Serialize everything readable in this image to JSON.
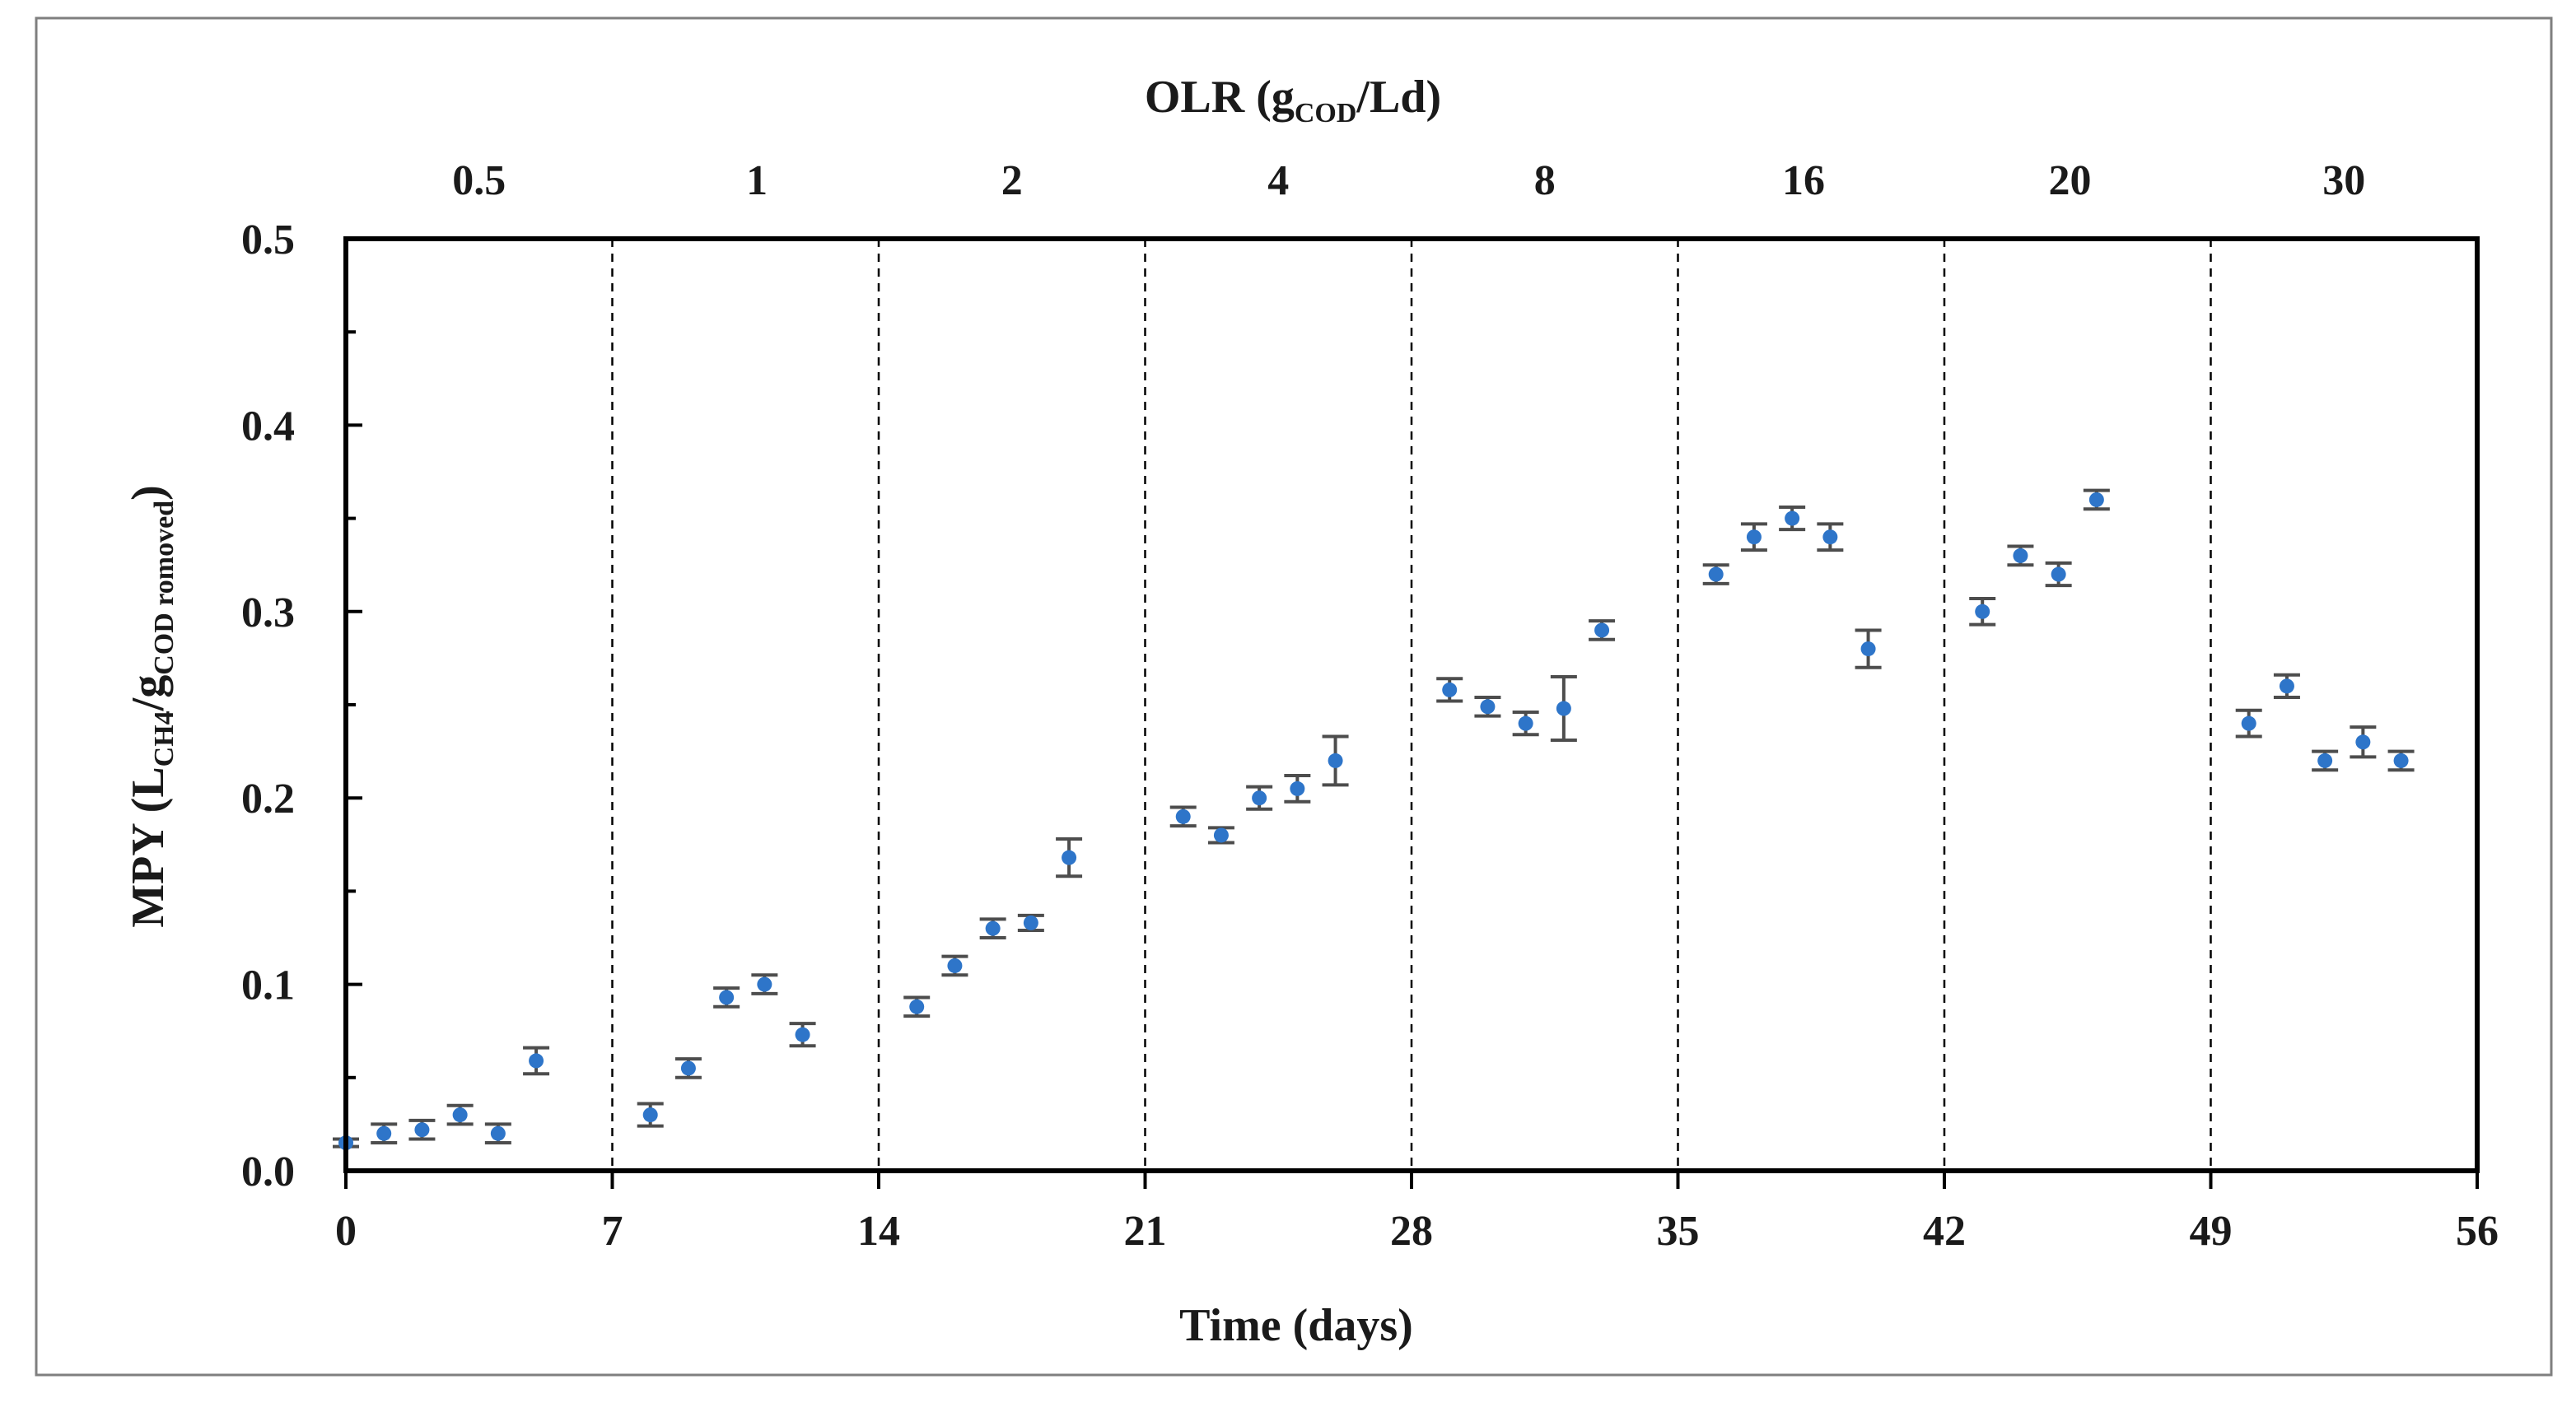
{
  "colors": {
    "marker": "#2e75c9",
    "error_bar": "#4d4d4d",
    "axis": "#000000",
    "frame": "#7f7f7f"
  },
  "chart_data": {
    "type": "scatter",
    "title": "",
    "xlabel": "Time (days)",
    "ylabel_main": "MPY (L",
    "ylabel_sub1": "CH4",
    "ylabel_mid": "/g",
    "ylabel_sub2": "COD romoved",
    "ylabel_end": ")",
    "xlim": [
      0,
      56
    ],
    "ylim": [
      0,
      0.5
    ],
    "x_ticks": [
      0,
      7,
      14,
      21,
      28,
      35,
      42,
      49,
      56
    ],
    "x_tick_labels": [
      "0",
      "7",
      "14",
      "21",
      "28",
      "35",
      "42",
      "49",
      "56"
    ],
    "y_ticks": [
      0,
      0.1,
      0.2,
      0.3,
      0.4,
      0.5
    ],
    "y_tick_labels": [
      "0.0",
      "0.1",
      "0.2",
      "0.3",
      "0.4",
      "0.5"
    ],
    "period_boundaries": [
      7,
      14,
      21,
      28,
      35,
      42,
      49
    ],
    "top_axis": {
      "title_main": "OLR (g",
      "title_sub": "COD",
      "title_end": "/Ld)",
      "periods": [
        {
          "label": "0.5",
          "center": 3.5
        },
        {
          "label": "1",
          "center": 10.8
        },
        {
          "label": "2",
          "center": 17.5
        },
        {
          "label": "4",
          "center": 24.5
        },
        {
          "label": "8",
          "center": 31.5
        },
        {
          "label": "16",
          "center": 38.3
        },
        {
          "label": "20",
          "center": 45.3
        },
        {
          "label": "30",
          "center": 52.5
        }
      ]
    },
    "series": [
      {
        "name": "MPY",
        "points": [
          {
            "x": 0,
            "y": 0.015,
            "err": 0.002
          },
          {
            "x": 1,
            "y": 0.02,
            "err": 0.005
          },
          {
            "x": 2,
            "y": 0.022,
            "err": 0.005
          },
          {
            "x": 3,
            "y": 0.03,
            "err": 0.005
          },
          {
            "x": 4,
            "y": 0.02,
            "err": 0.005
          },
          {
            "x": 5,
            "y": 0.059,
            "err": 0.007
          },
          {
            "x": 8,
            "y": 0.03,
            "err": 0.006
          },
          {
            "x": 9,
            "y": 0.055,
            "err": 0.005
          },
          {
            "x": 10,
            "y": 0.093,
            "err": 0.005
          },
          {
            "x": 11,
            "y": 0.1,
            "err": 0.005
          },
          {
            "x": 12,
            "y": 0.073,
            "err": 0.006
          },
          {
            "x": 15,
            "y": 0.088,
            "err": 0.005
          },
          {
            "x": 16,
            "y": 0.11,
            "err": 0.005
          },
          {
            "x": 17,
            "y": 0.13,
            "err": 0.005
          },
          {
            "x": 18,
            "y": 0.133,
            "err": 0.004
          },
          {
            "x": 19,
            "y": 0.168,
            "err": 0.01
          },
          {
            "x": 22,
            "y": 0.19,
            "err": 0.005
          },
          {
            "x": 23,
            "y": 0.18,
            "err": 0.004
          },
          {
            "x": 24,
            "y": 0.2,
            "err": 0.006
          },
          {
            "x": 25,
            "y": 0.205,
            "err": 0.007
          },
          {
            "x": 26,
            "y": 0.22,
            "err": 0.013
          },
          {
            "x": 29,
            "y": 0.258,
            "err": 0.006
          },
          {
            "x": 30,
            "y": 0.249,
            "err": 0.005
          },
          {
            "x": 31,
            "y": 0.24,
            "err": 0.006
          },
          {
            "x": 32,
            "y": 0.248,
            "err": 0.017
          },
          {
            "x": 33,
            "y": 0.29,
            "err": 0.005
          },
          {
            "x": 36,
            "y": 0.32,
            "err": 0.005
          },
          {
            "x": 37,
            "y": 0.34,
            "err": 0.007
          },
          {
            "x": 38,
            "y": 0.35,
            "err": 0.006
          },
          {
            "x": 39,
            "y": 0.34,
            "err": 0.007
          },
          {
            "x": 40,
            "y": 0.28,
            "err": 0.01
          },
          {
            "x": 43,
            "y": 0.3,
            "err": 0.007
          },
          {
            "x": 44,
            "y": 0.33,
            "err": 0.005
          },
          {
            "x": 45,
            "y": 0.32,
            "err": 0.006
          },
          {
            "x": 46,
            "y": 0.36,
            "err": 0.005
          },
          {
            "x": 50,
            "y": 0.24,
            "err": 0.007
          },
          {
            "x": 51,
            "y": 0.26,
            "err": 0.006
          },
          {
            "x": 52,
            "y": 0.22,
            "err": 0.005
          },
          {
            "x": 53,
            "y": 0.23,
            "err": 0.008
          },
          {
            "x": 54,
            "y": 0.22,
            "err": 0.005
          }
        ]
      }
    ]
  }
}
